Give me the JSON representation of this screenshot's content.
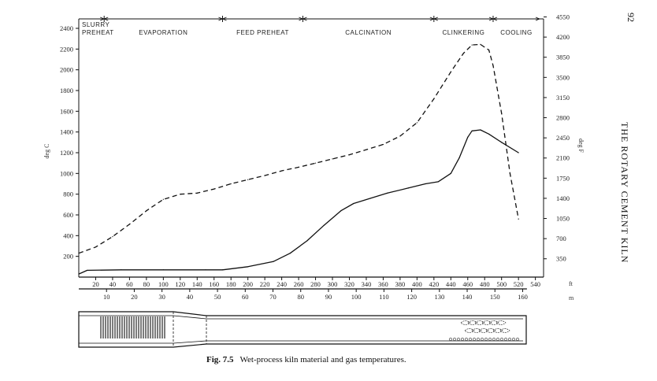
{
  "page": {
    "number": "92",
    "running_head": "THE ROTARY CEMENT KILN",
    "caption_label": "Fig. 7.5",
    "caption_text": "Wet-process kiln material and gas temperatures."
  },
  "chart_data": {
    "type": "line",
    "title": "",
    "ylabel": "deg C",
    "y2label": "deg F",
    "xlabel_top": "ft",
    "xlabel_bottom": "m",
    "ylim": [
      0,
      2400
    ],
    "xlim_ft": [
      0,
      545
    ],
    "grid": false,
    "legend": "none",
    "y_ticks": [
      200,
      400,
      600,
      800,
      1000,
      1200,
      1400,
      1600,
      1800,
      2000,
      2200,
      2400
    ],
    "y_tick_labels": [
      "200",
      "400",
      "600",
      "800",
      "1000",
      "1200",
      "1400",
      "1600",
      "1800",
      "2000",
      "2200",
      "2400"
    ],
    "y2_ticks": [
      350,
      700,
      1050,
      1400,
      1750,
      2100,
      2450,
      2800,
      3150,
      3500,
      3850,
      4200,
      4550
    ],
    "y2_tick_labels": [
      "350",
      "700",
      "1050",
      "1400",
      "1750",
      "2100",
      "2450",
      "2800",
      "3150",
      "3500",
      "3850",
      "4200",
      "4550"
    ],
    "x_ft_ticks": [
      20,
      40,
      60,
      80,
      100,
      120,
      140,
      160,
      180,
      200,
      220,
      240,
      260,
      280,
      300,
      320,
      340,
      360,
      380,
      400,
      420,
      440,
      460,
      480,
      500,
      520,
      540
    ],
    "x_ft_tick_labels": [
      "20",
      "40",
      "60",
      "80",
      "100",
      "120",
      "140",
      "160",
      "180",
      "200",
      "220",
      "240",
      "260",
      "280",
      "300",
      "320",
      "340",
      "360",
      "380",
      "400",
      "420",
      "440",
      "460",
      "480",
      "500",
      "520",
      "540"
    ],
    "x_m_ticks": [
      10,
      20,
      30,
      40,
      50,
      60,
      70,
      80,
      90,
      100,
      110,
      120,
      130,
      140,
      150,
      160
    ],
    "x_m_tick_labels": [
      "10",
      "20",
      "30",
      "40",
      "50",
      "60",
      "70",
      "80",
      "90",
      "100",
      "110",
      "120",
      "130",
      "140",
      "150",
      "160"
    ],
    "zones": [
      {
        "label": "SLURRY PREHEAT",
        "start_ft": 0,
        "end_ft": 30
      },
      {
        "label": "EVAPORATION",
        "start_ft": 30,
        "end_ft": 170
      },
      {
        "label": "FEED PREHEAT",
        "start_ft": 170,
        "end_ft": 265
      },
      {
        "label": "CALCINATION",
        "start_ft": 265,
        "end_ft": 420
      },
      {
        "label": "CLINKERING",
        "start_ft": 420,
        "end_ft": 490
      },
      {
        "label": "COOLING",
        "start_ft": 490,
        "end_ft": 545
      }
    ],
    "series": [
      {
        "style": "dashed",
        "x": [
          0,
          20,
          40,
          60,
          80,
          100,
          120,
          140,
          160,
          180,
          200,
          220,
          240,
          260,
          280,
          300,
          320,
          340,
          360,
          380,
          400,
          420,
          440,
          455,
          465,
          475,
          485,
          490,
          500,
          510,
          520
        ],
        "values": [
          230,
          290,
          390,
          510,
          640,
          750,
          800,
          810,
          850,
          900,
          940,
          980,
          1025,
          1060,
          1100,
          1140,
          1180,
          1230,
          1280,
          1360,
          1490,
          1720,
          1980,
          2160,
          2240,
          2245,
          2190,
          2040,
          1580,
          1000,
          560
        ]
      },
      {
        "style": "solid",
        "x": [
          0,
          10,
          50,
          100,
          150,
          170,
          200,
          230,
          250,
          270,
          290,
          310,
          325,
          345,
          365,
          390,
          410,
          425,
          440,
          450,
          460,
          465,
          475,
          485,
          500,
          520
        ],
        "values": [
          30,
          65,
          70,
          70,
          70,
          70,
          100,
          150,
          230,
          350,
          500,
          640,
          710,
          760,
          810,
          860,
          900,
          920,
          1000,
          1150,
          1350,
          1410,
          1420,
          1380,
          1300,
          1200
        ]
      }
    ]
  }
}
